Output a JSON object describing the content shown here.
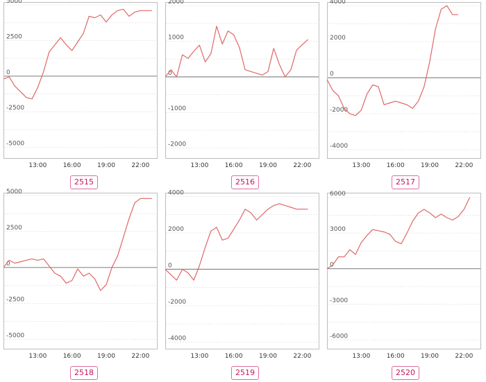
{
  "chart_data": [
    {
      "type": "line",
      "label": "2515",
      "x": [
        "10:00",
        "10:30",
        "11:00",
        "11:30",
        "12:00",
        "12:30",
        "13:00",
        "13:30",
        "14:00",
        "14:30",
        "15:00",
        "15:30",
        "16:00",
        "16:30",
        "17:00",
        "17:30",
        "18:00",
        "18:30",
        "19:00",
        "19:30",
        "20:00",
        "20:30",
        "21:00",
        "21:30",
        "22:00",
        "22:30",
        "23:00"
      ],
      "values": [
        -200,
        -50,
        -700,
        -1100,
        -1500,
        -1600,
        -800,
        300,
        1700,
        2200,
        2700,
        2200,
        1800,
        2400,
        3000,
        4200,
        4100,
        4300,
        3800,
        4300,
        4600,
        4700,
        4200,
        4500,
        4600,
        4600,
        4600
      ],
      "ylim": [
        -5800,
        5200
      ],
      "yticks": [
        "5000",
        "2500",
        "0",
        "-2500",
        "-5000"
      ],
      "ytick_values": [
        5000,
        2500,
        0,
        -2500,
        -5000
      ],
      "xticks": [
        "13:00",
        "16:00",
        "19:00",
        "22:00"
      ],
      "grid": true
    },
    {
      "type": "line",
      "label": "2516",
      "x": [
        "10:00",
        "10:30",
        "11:00",
        "11:30",
        "12:00",
        "12:30",
        "13:00",
        "13:30",
        "14:00",
        "14:30",
        "15:00",
        "15:30",
        "16:00",
        "16:30",
        "17:00",
        "17:30",
        "18:00",
        "18:30",
        "19:00",
        "19:30",
        "20:00",
        "20:30",
        "21:00",
        "21:30",
        "22:00",
        "22:30"
      ],
      "values": [
        0,
        200,
        0,
        620,
        520,
        720,
        890,
        420,
        650,
        1420,
        920,
        1290,
        1180,
        820,
        200,
        150,
        100,
        50,
        150,
        800,
        350,
        0,
        200,
        750,
        900,
        1050
      ],
      "ylim": [
        -2300,
        2100
      ],
      "yticks": [
        "2000",
        "1000",
        "0",
        "-1000",
        "-2000"
      ],
      "ytick_values": [
        2000,
        1000,
        0,
        -1000,
        -2000
      ],
      "xticks": [
        "13:00",
        "16:00",
        "19:00",
        "22:00"
      ],
      "grid": true
    },
    {
      "type": "line",
      "label": "2517",
      "x": [
        "10:00",
        "10:30",
        "11:00",
        "11:30",
        "12:00",
        "12:30",
        "13:00",
        "13:30",
        "14:00",
        "14:30",
        "15:00",
        "15:30",
        "16:00",
        "16:30",
        "17:00",
        "17:30",
        "18:00",
        "18:30",
        "19:00",
        "19:30",
        "20:00",
        "20:30",
        "21:00",
        "21:30"
      ],
      "values": [
        -100,
        -700,
        -1000,
        -1700,
        -2000,
        -2100,
        -1800,
        -900,
        -400,
        -500,
        -1500,
        -1400,
        -1300,
        -1400,
        -1500,
        -1700,
        -1300,
        -500,
        900,
        2700,
        3800,
        4000,
        3500,
        3500
      ],
      "ylim": [
        -4500,
        4200
      ],
      "yticks": [
        "4000",
        "2000",
        "0",
        "-2000",
        "-4000"
      ],
      "ytick_values": [
        4000,
        2000,
        0,
        -2000,
        -4000
      ],
      "xticks": [
        "13:00",
        "16:00",
        "19:00",
        "22:00"
      ],
      "grid": true
    },
    {
      "type": "line",
      "label": "2518",
      "x": [
        "10:00",
        "10:30",
        "11:00",
        "11:30",
        "12:00",
        "12:30",
        "13:00",
        "13:30",
        "14:00",
        "14:30",
        "15:00",
        "15:30",
        "16:00",
        "16:30",
        "17:00",
        "17:30",
        "18:00",
        "18:30",
        "19:00",
        "19:30",
        "20:00",
        "20:30",
        "21:00",
        "21:30",
        "22:00",
        "22:30",
        "23:00"
      ],
      "values": [
        0,
        500,
        300,
        400,
        500,
        600,
        500,
        600,
        100,
        -400,
        -600,
        -1100,
        -900,
        -100,
        -600,
        -400,
        -800,
        -1600,
        -1200,
        0,
        800,
        2100,
        3400,
        4500,
        4800,
        4800,
        4800
      ],
      "ylim": [
        -5700,
        5200
      ],
      "yticks": [
        "5000",
        "2500",
        "0",
        "-2500",
        "-5000"
      ],
      "ytick_values": [
        5000,
        2500,
        0,
        -2500,
        -5000
      ],
      "xticks": [
        "13:00",
        "16:00",
        "19:00",
        "22:00"
      ],
      "grid": true
    },
    {
      "type": "line",
      "label": "2519",
      "x": [
        "10:00",
        "10:30",
        "11:00",
        "11:30",
        "12:00",
        "12:30",
        "13:00",
        "13:30",
        "14:00",
        "14:30",
        "15:00",
        "15:30",
        "16:00",
        "16:30",
        "17:00",
        "17:30",
        "18:00",
        "18:30",
        "19:00",
        "19:30",
        "20:00",
        "20:30",
        "21:00",
        "21:30",
        "22:00",
        "22:30"
      ],
      "values": [
        0,
        -300,
        -600,
        0,
        -200,
        -600,
        200,
        1200,
        2100,
        2300,
        1600,
        1700,
        2200,
        2700,
        3300,
        3100,
        2700,
        3000,
        3300,
        3500,
        3600,
        3500,
        3400,
        3300,
        3300,
        3300
      ],
      "ylim": [
        -4400,
        4200
      ],
      "yticks": [
        "4000",
        "2000",
        "0",
        "-2000",
        "-4000"
      ],
      "ytick_values": [
        4000,
        2000,
        0,
        -2000,
        -4000
      ],
      "xticks": [
        "13:00",
        "16:00",
        "19:00",
        "22:00"
      ],
      "grid": true
    },
    {
      "type": "line",
      "label": "2520",
      "x": [
        "10:00",
        "10:30",
        "11:00",
        "11:30",
        "12:00",
        "12:30",
        "13:00",
        "13:30",
        "14:00",
        "14:30",
        "15:00",
        "15:30",
        "16:00",
        "16:30",
        "17:00",
        "17:30",
        "18:00",
        "18:30",
        "19:00",
        "19:30",
        "20:00",
        "20:30",
        "21:00",
        "21:30",
        "22:00",
        "22:30"
      ],
      "values": [
        0,
        300,
        1000,
        1000,
        1600,
        1200,
        2200,
        2800,
        3300,
        3200,
        3100,
        2900,
        2300,
        2100,
        3000,
        4000,
        4700,
        5000,
        4700,
        4300,
        4600,
        4300,
        4100,
        4400,
        5000,
        6000
      ],
      "ylim": [
        -6800,
        6400
      ],
      "yticks": [
        "6000",
        "3000",
        "0",
        "-3000",
        "-6000"
      ],
      "ytick_values": [
        6000,
        3000,
        0,
        -3000,
        -6000
      ],
      "xticks": [
        "13:00",
        "16:00",
        "19:00",
        "22:00"
      ],
      "grid": true
    }
  ]
}
